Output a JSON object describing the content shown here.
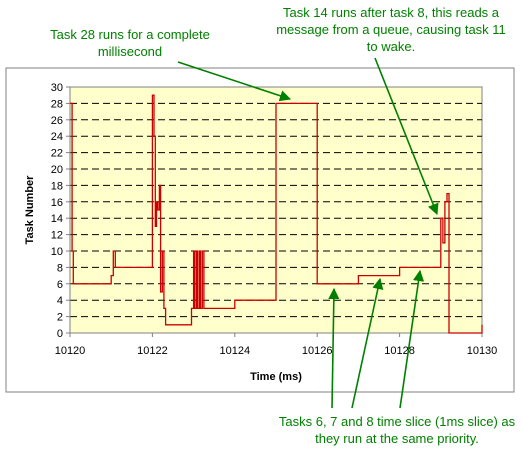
{
  "colors": {
    "background": "#ffffff",
    "plot_area": "#ffffcc",
    "frame": "#808080",
    "gridline": "#000000",
    "series": "#cc0000",
    "annotation": "#008000"
  },
  "annotations": [
    {
      "text": "Task 28 runs for a complete millisecond"
    },
    {
      "text": "Task 14 runs after task 8, this reads a message from a queue, causing task 11 to wake."
    },
    {
      "text": "Tasks 6, 7 and 8 time slice (1ms slice) as they run at the same priority."
    }
  ],
  "chart_data": {
    "type": "line",
    "step": true,
    "title": "",
    "xlabel": "Time (ms)",
    "ylabel": "Task Number",
    "xlim": [
      10120,
      10130
    ],
    "ylim": [
      0,
      30
    ],
    "xticks": [
      10120,
      10122,
      10124,
      10126,
      10128,
      10130
    ],
    "yticks": [
      0,
      2,
      4,
      6,
      8,
      10,
      12,
      14,
      16,
      18,
      20,
      22,
      24,
      26,
      28,
      30
    ],
    "grid": "horizontal dashed",
    "legend": "none",
    "series": [
      {
        "points": [
          [
            10120.0,
            28
          ],
          [
            10120.05,
            28
          ],
          [
            10120.05,
            10
          ],
          [
            10120.08,
            10
          ],
          [
            10120.08,
            6
          ],
          [
            10121.0,
            6
          ],
          [
            10121.0,
            7
          ],
          [
            10121.05,
            7
          ],
          [
            10121.05,
            10
          ],
          [
            10121.1,
            10
          ],
          [
            10121.1,
            8
          ],
          [
            10122.0,
            8
          ],
          [
            10122.0,
            29
          ],
          [
            10122.04,
            29
          ],
          [
            10122.04,
            24
          ],
          [
            10122.07,
            24
          ],
          [
            10122.07,
            13
          ],
          [
            10122.1,
            13
          ],
          [
            10122.1,
            16
          ],
          [
            10122.13,
            16
          ],
          [
            10122.13,
            15
          ],
          [
            10122.17,
            15
          ],
          [
            10122.17,
            18
          ],
          [
            10122.2,
            18
          ],
          [
            10122.2,
            5
          ],
          [
            10122.24,
            5
          ],
          [
            10122.24,
            10
          ],
          [
            10122.28,
            10
          ],
          [
            10122.28,
            3
          ],
          [
            10122.32,
            3
          ],
          [
            10122.32,
            1
          ],
          [
            10122.95,
            1
          ],
          [
            10122.95,
            3
          ],
          [
            10123.0,
            3
          ],
          [
            10123.0,
            10
          ],
          [
            10123.03,
            10
          ],
          [
            10123.03,
            3
          ],
          [
            10123.07,
            3
          ],
          [
            10123.07,
            10
          ],
          [
            10123.1,
            10
          ],
          [
            10123.1,
            3
          ],
          [
            10123.14,
            3
          ],
          [
            10123.14,
            10
          ],
          [
            10123.17,
            10
          ],
          [
            10123.17,
            3
          ],
          [
            10123.21,
            3
          ],
          [
            10123.21,
            10
          ],
          [
            10123.25,
            10
          ],
          [
            10123.25,
            3
          ],
          [
            10124.0,
            3
          ],
          [
            10124.0,
            4
          ],
          [
            10125.0,
            4
          ],
          [
            10125.0,
            28
          ],
          [
            10126.0,
            28
          ],
          [
            10126.0,
            6
          ],
          [
            10127.0,
            6
          ],
          [
            10127.0,
            7
          ],
          [
            10128.0,
            7
          ],
          [
            10128.0,
            8
          ],
          [
            10129.0,
            8
          ],
          [
            10129.0,
            14
          ],
          [
            10129.05,
            14
          ],
          [
            10129.05,
            11
          ],
          [
            10129.1,
            11
          ],
          [
            10129.1,
            16
          ],
          [
            10129.15,
            16
          ],
          [
            10129.15,
            17
          ],
          [
            10129.2,
            17
          ],
          [
            10129.2,
            0
          ],
          [
            10130.0,
            0
          ],
          [
            10130.0,
            1
          ]
        ]
      }
    ]
  }
}
